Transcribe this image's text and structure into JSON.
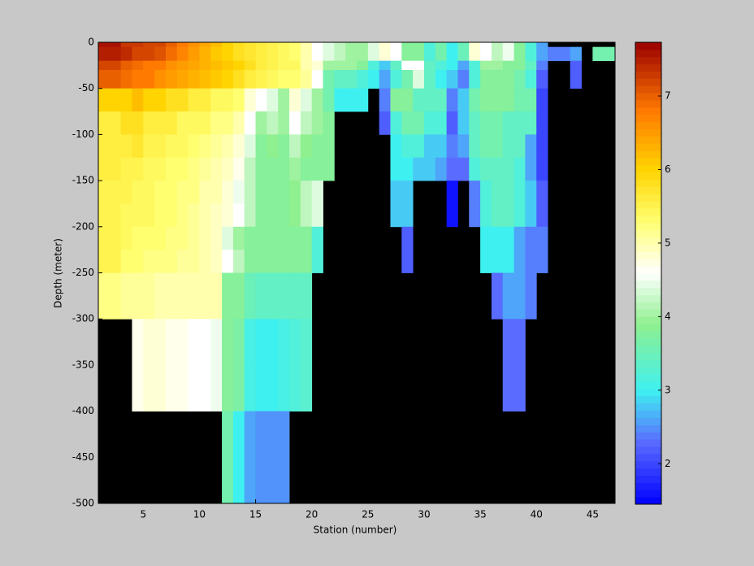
{
  "chart_data": {
    "type": "heatmap",
    "xlabel": "Station (number)",
    "ylabel": "Depth (meter)",
    "xlim": [
      1,
      47
    ],
    "xticks": [
      5,
      10,
      15,
      20,
      25,
      30,
      35,
      40,
      45
    ],
    "ylim": [
      -500,
      0
    ],
    "yticks": [
      -500,
      -450,
      -400,
      -350,
      -300,
      -250,
      -200,
      -150,
      -100,
      -50,
      0
    ],
    "x_edges": [
      1,
      2,
      3,
      4,
      5,
      6,
      7,
      8,
      9,
      10,
      11,
      12,
      13,
      14,
      15,
      16,
      17,
      18,
      19,
      20,
      21,
      22,
      23,
      24,
      25,
      26,
      27,
      28,
      29,
      30,
      31,
      32,
      33,
      34,
      35,
      36,
      37,
      38,
      39,
      40,
      41,
      42,
      43,
      44,
      45,
      46,
      47
    ],
    "y_edges": [
      0,
      -5,
      -20,
      -30,
      -50,
      -75,
      -100,
      -125,
      -150,
      -175,
      -200,
      -225,
      -250,
      -300,
      -350,
      -400,
      -500
    ],
    "values": [
      [
        7.6,
        7.6,
        7.3,
        7.3,
        7.2,
        7.2,
        7.0,
        6.8,
        6.6,
        6.4,
        6.2,
        6.0,
        5.8,
        5.7,
        5.6,
        5.5,
        5.4,
        5.3,
        5.0,
        4.6,
        4.4,
        4.2,
        4.0,
        4.0,
        4.4,
        4.8,
        4.6,
        3.8,
        3.8,
        3.2,
        3.6,
        3.0,
        3.5,
        4.8,
        4.6,
        4.2,
        4.5,
        3.8,
        3.2,
        2.6,
        null,
        null,
        null,
        null,
        null,
        null
      ],
      [
        7.5,
        7.5,
        7.4,
        7.2,
        7.2,
        7.1,
        6.9,
        6.7,
        6.5,
        6.3,
        6.1,
        6.0,
        5.8,
        5.7,
        5.6,
        5.5,
        5.4,
        5.3,
        5.0,
        4.6,
        4.4,
        4.2,
        4.0,
        4.0,
        4.4,
        4.8,
        4.6,
        3.8,
        3.8,
        3.2,
        3.6,
        3.0,
        3.5,
        4.8,
        4.6,
        4.2,
        4.5,
        3.8,
        3.2,
        2.6,
        2.4,
        2.4,
        2.6,
        null,
        3.6,
        3.6
      ],
      [
        7.2,
        7.2,
        7.0,
        6.9,
        6.8,
        6.8,
        6.6,
        6.5,
        6.4,
        6.3,
        6.2,
        6.1,
        6.0,
        5.8,
        5.6,
        5.5,
        5.4,
        5.4,
        5.0,
        4.8,
        4.0,
        4.0,
        4.0,
        3.8,
        3.2,
        2.8,
        3.4,
        4.6,
        4.6,
        3.4,
        3.2,
        3.0,
        2.6,
        3.2,
        4.0,
        4.0,
        3.8,
        3.8,
        3.4,
        2.4,
        null,
        null,
        2.2,
        null,
        null,
        null
      ],
      [
        7.0,
        7.0,
        6.9,
        6.8,
        6.8,
        6.6,
        6.5,
        6.4,
        6.3,
        6.2,
        6.1,
        6.0,
        5.8,
        5.6,
        5.5,
        5.4,
        5.3,
        5.3,
        5.1,
        4.6,
        3.6,
        3.4,
        3.4,
        3.2,
        3.0,
        2.6,
        3.2,
        3.6,
        4.4,
        3.4,
        3.0,
        2.8,
        2.4,
        3.2,
        3.8,
        3.8,
        3.8,
        3.6,
        3.2,
        2.2,
        null,
        null,
        2.2,
        null,
        null,
        null
      ],
      [
        6.0,
        6.0,
        6.0,
        6.2,
        6.0,
        6.0,
        5.8,
        5.8,
        5.6,
        5.6,
        5.4,
        5.4,
        5.3,
        4.8,
        4.6,
        4.4,
        4.0,
        4.8,
        4.4,
        4.0,
        3.6,
        3.0,
        3.0,
        3.0,
        null,
        2.4,
        3.8,
        3.8,
        3.4,
        3.4,
        3.4,
        2.4,
        2.8,
        3.6,
        3.8,
        3.8,
        3.8,
        3.6,
        3.6,
        2.0,
        null,
        null,
        null,
        null,
        null,
        null
      ],
      [
        5.6,
        5.6,
        5.8,
        5.8,
        5.6,
        5.6,
        5.6,
        5.4,
        5.4,
        5.4,
        5.2,
        5.2,
        5.0,
        4.6,
        4.0,
        4.2,
        4.0,
        4.6,
        4.2,
        4.0,
        3.8,
        null,
        null,
        null,
        null,
        2.2,
        3.2,
        3.6,
        3.6,
        3.2,
        3.2,
        2.2,
        2.8,
        3.4,
        3.6,
        3.6,
        3.4,
        3.4,
        3.4,
        2.0,
        null,
        null,
        null,
        null,
        null,
        null
      ],
      [
        5.6,
        5.6,
        5.6,
        5.7,
        5.5,
        5.5,
        5.4,
        5.4,
        5.3,
        5.2,
        5.1,
        5.0,
        4.8,
        4.4,
        3.8,
        3.9,
        3.8,
        4.2,
        3.9,
        3.8,
        3.8,
        null,
        null,
        null,
        null,
        null,
        3.0,
        3.2,
        3.2,
        2.8,
        2.8,
        2.4,
        2.6,
        3.4,
        3.6,
        3.6,
        3.4,
        3.4,
        2.6,
        2.0,
        null,
        null,
        null,
        null,
        null,
        null
      ],
      [
        5.6,
        5.6,
        5.5,
        5.5,
        5.4,
        5.4,
        5.3,
        5.3,
        5.2,
        5.1,
        5.0,
        4.9,
        4.7,
        4.2,
        3.8,
        3.8,
        3.8,
        4.0,
        3.8,
        3.8,
        3.8,
        null,
        null,
        null,
        null,
        null,
        3.0,
        3.0,
        2.8,
        2.8,
        2.6,
        2.3,
        2.3,
        3.2,
        3.4,
        3.4,
        3.4,
        3.2,
        2.6,
        2.0,
        null,
        null,
        null,
        null,
        null,
        null
      ],
      [
        5.5,
        5.5,
        5.5,
        5.4,
        5.4,
        5.3,
        5.3,
        5.2,
        5.2,
        5.0,
        5.0,
        4.8,
        4.5,
        4.2,
        3.8,
        3.8,
        3.8,
        3.9,
        4.2,
        4.4,
        null,
        null,
        null,
        null,
        null,
        null,
        2.8,
        2.8,
        null,
        null,
        null,
        1.6,
        null,
        2.4,
        3.2,
        3.4,
        3.4,
        3.2,
        2.8,
        2.2,
        null,
        null,
        null,
        null,
        null,
        null
      ],
      [
        5.5,
        5.5,
        5.4,
        5.4,
        5.4,
        5.3,
        5.3,
        5.2,
        5.1,
        5.0,
        4.9,
        4.8,
        4.6,
        4.2,
        3.8,
        3.8,
        3.8,
        3.9,
        4.2,
        4.4,
        null,
        null,
        null,
        null,
        null,
        null,
        2.8,
        2.8,
        null,
        null,
        null,
        1.6,
        null,
        2.4,
        3.2,
        3.4,
        3.4,
        3.2,
        2.8,
        2.2,
        null,
        null,
        null,
        null,
        null,
        null
      ],
      [
        5.5,
        5.5,
        5.4,
        5.3,
        5.3,
        5.3,
        5.2,
        5.2,
        5.1,
        5.0,
        4.9,
        4.4,
        4.0,
        3.8,
        3.8,
        3.8,
        3.8,
        3.8,
        3.8,
        3.2,
        null,
        null,
        null,
        null,
        null,
        null,
        null,
        2.2,
        null,
        null,
        null,
        null,
        null,
        null,
        3.0,
        3.0,
        3.0,
        2.6,
        2.4,
        2.4,
        null,
        null,
        null,
        null,
        null,
        null
      ],
      [
        5.5,
        5.5,
        5.3,
        5.3,
        5.2,
        5.2,
        5.2,
        5.1,
        5.1,
        5.0,
        4.9,
        4.6,
        4.2,
        3.8,
        3.8,
        3.8,
        3.8,
        3.8,
        3.8,
        3.2,
        null,
        null,
        null,
        null,
        null,
        null,
        null,
        2.2,
        null,
        null,
        null,
        null,
        null,
        null,
        3.0,
        3.0,
        3.0,
        2.6,
        2.4,
        2.4,
        null,
        null,
        null,
        null,
        null,
        null
      ],
      [
        5.2,
        5.2,
        5.1,
        5.1,
        5.1,
        5.0,
        5.0,
        5.0,
        5.0,
        5.0,
        5.0,
        3.8,
        3.8,
        3.5,
        3.4,
        3.4,
        3.4,
        3.4,
        3.4,
        null,
        null,
        null,
        null,
        null,
        null,
        null,
        null,
        null,
        null,
        null,
        null,
        null,
        null,
        null,
        null,
        2.3,
        2.6,
        2.6,
        2.4,
        null,
        null,
        null,
        null,
        null,
        null,
        null
      ],
      [
        null,
        null,
        null,
        4.7,
        4.8,
        4.8,
        4.7,
        4.7,
        4.6,
        4.6,
        4.5,
        3.8,
        3.7,
        3.1,
        3.0,
        3.0,
        3.1,
        3.2,
        3.3,
        null,
        null,
        null,
        null,
        null,
        null,
        null,
        null,
        null,
        null,
        null,
        null,
        null,
        null,
        null,
        null,
        null,
        2.3,
        2.3,
        null,
        null,
        null,
        null,
        null,
        null,
        null,
        null
      ],
      [
        null,
        null,
        null,
        4.7,
        4.8,
        4.8,
        4.7,
        4.7,
        4.6,
        4.6,
        4.5,
        3.8,
        3.7,
        3.1,
        3.0,
        3.0,
        3.1,
        3.2,
        3.3,
        null,
        null,
        null,
        null,
        null,
        null,
        null,
        null,
        null,
        null,
        null,
        null,
        null,
        null,
        null,
        null,
        null,
        2.3,
        2.3,
        null,
        null,
        null,
        null,
        null,
        null,
        null,
        null
      ],
      [
        null,
        null,
        null,
        null,
        null,
        null,
        null,
        null,
        null,
        null,
        null,
        3.6,
        3.0,
        2.6,
        2.5,
        2.5,
        2.5,
        null,
        null,
        null,
        null,
        null,
        null,
        null,
        null,
        null,
        null,
        null,
        null,
        null,
        null,
        null,
        null,
        null,
        null,
        null,
        null,
        null,
        null,
        null,
        null,
        null,
        null,
        null,
        null,
        null
      ]
    ],
    "missing_color": "#000000",
    "clim": [
      1.45,
      7.73
    ],
    "cticks": [
      2,
      3,
      4,
      5,
      6,
      7
    ],
    "colormap": [
      [
        1.45,
        "#0000ff"
      ],
      [
        2.3,
        "#5a6cff"
      ],
      [
        3.0,
        "#3ff0f0"
      ],
      [
        3.9,
        "#8ff08f"
      ],
      [
        4.6,
        "#ffffff"
      ],
      [
        5.3,
        "#ffff70"
      ],
      [
        6.0,
        "#ffd400"
      ],
      [
        6.8,
        "#ff7a00"
      ],
      [
        7.73,
        "#9a0000"
      ]
    ]
  }
}
